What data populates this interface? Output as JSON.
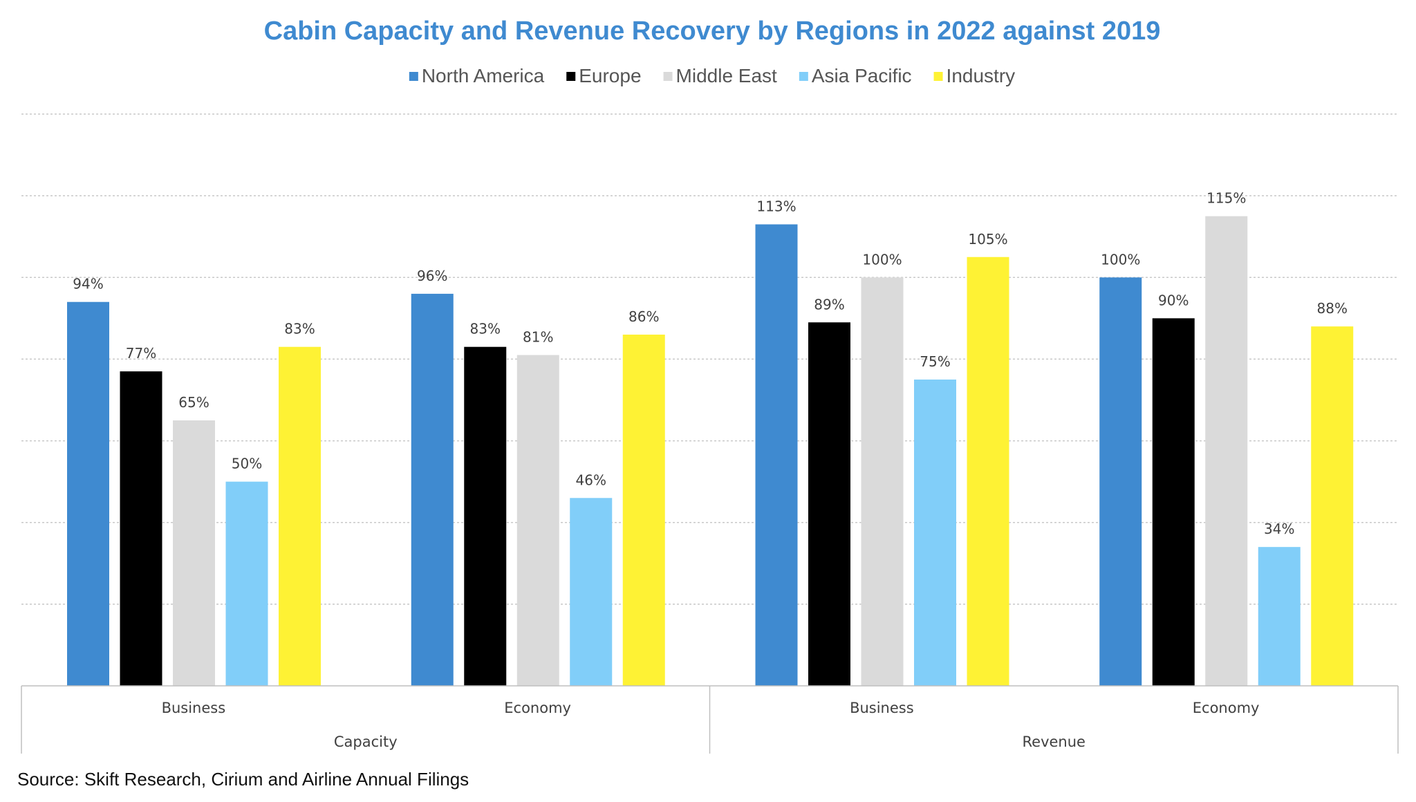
{
  "chart_data": {
    "type": "bar",
    "title": "Cabin Capacity and Revenue Recovery by Regions in 2022 against 2019",
    "source": "Source: Skift Research, Cirium and Airline Annual Filings",
    "legend_position": "top-center",
    "grid": true,
    "ylim": [
      0,
      140
    ],
    "groups": [
      {
        "label": "Capacity",
        "categories": [
          "Business",
          "Economy"
        ]
      },
      {
        "label": "Revenue",
        "categories": [
          "Business",
          "Economy"
        ]
      }
    ],
    "categories": [
      "Business",
      "Economy",
      "Business",
      "Economy"
    ],
    "series": [
      {
        "name": "North America",
        "color": "#3F8AD0",
        "values": [
          94,
          96,
          113,
          100
        ],
        "labels": [
          "94%",
          "96%",
          "113%",
          "100%"
        ]
      },
      {
        "name": "Europe",
        "color": "#000000",
        "values": [
          77,
          83,
          89,
          90
        ],
        "labels": [
          "77%",
          "83%",
          "89%",
          "90%"
        ]
      },
      {
        "name": "Middle East",
        "color": "#DADADA",
        "values": [
          65,
          81,
          100,
          115
        ],
        "labels": [
          "65%",
          "81%",
          "100%",
          "115%"
        ]
      },
      {
        "name": "Asia Pacific",
        "color": "#81CEF9",
        "values": [
          50,
          46,
          75,
          34
        ],
        "labels": [
          "50%",
          "46%",
          "75%",
          "34%"
        ]
      },
      {
        "name": "Industry",
        "color": "#FEF234",
        "values": [
          83,
          86,
          105,
          88
        ],
        "labels": [
          "83%",
          "86%",
          "105%",
          "88%"
        ]
      }
    ]
  }
}
